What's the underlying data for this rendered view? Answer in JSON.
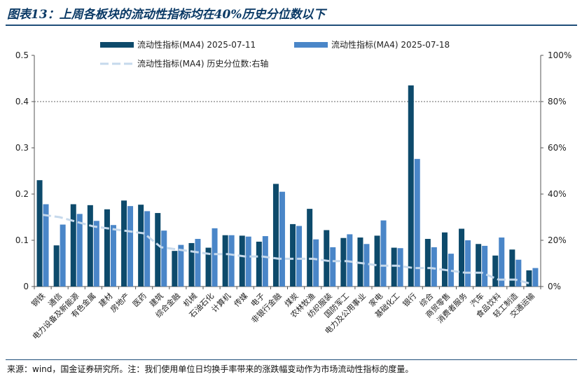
{
  "title": "图表13：上周各板块的流动性指标均在40%历史分位数以下",
  "source": "来源：wind，国金证券研究所。注：我们使用单位日均换手率带来的涨跌幅变动作为市场流动性指标的度量。",
  "colors": {
    "series1": "#0d4a6b",
    "series2": "#4a86c8",
    "series3": "#c6d9ec",
    "refline": "#666666",
    "title": "#0b3a66"
  },
  "chart_data": {
    "type": "bar",
    "categories": [
      "钢铁",
      "通信",
      "电力设备及新能源",
      "有色金属",
      "建材",
      "房地产",
      "医药",
      "建筑",
      "综合金融",
      "机械",
      "石油石化",
      "计算机",
      "传媒",
      "电子",
      "非银行金融",
      "煤炭",
      "农林牧渔",
      "纺织服装",
      "国防军工",
      "电力及公用事业",
      "家电",
      "基础化工",
      "银行",
      "综合",
      "商贸零售",
      "消费者服务",
      "汽车",
      "食品饮料",
      "轻工制造",
      "交通运输"
    ],
    "series": [
      {
        "name": "流动性指标(MA4) 2025-07-11",
        "type": "bar",
        "axis": "left",
        "values": [
          0.23,
          0.089,
          0.178,
          0.176,
          0.167,
          0.186,
          0.177,
          0.159,
          0.077,
          0.094,
          0.084,
          0.111,
          0.11,
          0.097,
          0.222,
          0.135,
          0.168,
          0.122,
          0.105,
          0.106,
          0.11,
          0.084,
          0.435,
          0.103,
          0.117,
          0.125,
          0.092,
          0.067,
          0.08,
          0.035
        ]
      },
      {
        "name": "流动性指标(MA4) 2025-07-18",
        "type": "bar",
        "axis": "left",
        "values": [
          0.178,
          0.134,
          0.157,
          0.142,
          0.133,
          0.174,
          0.163,
          0.121,
          0.09,
          0.103,
          0.126,
          0.111,
          0.108,
          0.109,
          0.205,
          0.131,
          0.102,
          0.085,
          0.113,
          0.092,
          0.143,
          0.083,
          0.276,
          0.085,
          0.071,
          0.1,
          0.088,
          0.106,
          0.058,
          0.04
        ]
      },
      {
        "name": "流动性指标(MA4) 历史分位数:右轴",
        "type": "line",
        "axis": "right",
        "unit": "%",
        "values": [
          31,
          30,
          28,
          26,
          25,
          24,
          23,
          17,
          16,
          15,
          14,
          14,
          13,
          13,
          12,
          12,
          12,
          11,
          11,
          10,
          9,
          9,
          8,
          8,
          7,
          6,
          6,
          3,
          3,
          1
        ]
      }
    ],
    "ylim": [
      0,
      0.5
    ],
    "yticks": [
      "0",
      "0.1",
      "0.2",
      "0.3",
      "0.4",
      "0.5"
    ],
    "y2lim": [
      0,
      100
    ],
    "y2ticks": [
      "0%",
      "20%",
      "40%",
      "60%",
      "80%",
      "100%"
    ],
    "reference_line": {
      "axis": "right",
      "value": 80,
      "style": "dashed"
    },
    "legend": {
      "position": "top"
    },
    "grid": false
  }
}
